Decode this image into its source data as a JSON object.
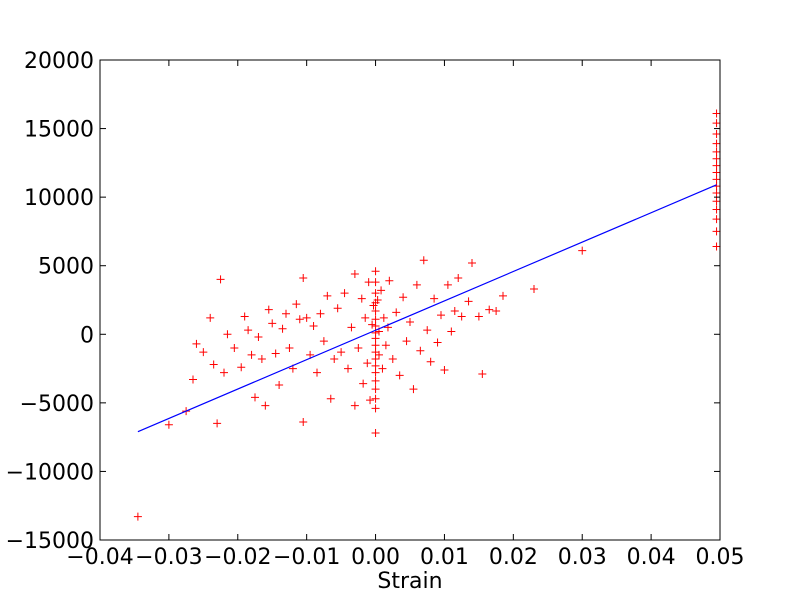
{
  "chart_data": {
    "type": "scatter",
    "xlabel": "Strain",
    "ylabel": "",
    "xlim": [
      -0.04,
      0.05
    ],
    "ylim": [
      -15000,
      20000
    ],
    "x_ticks": [
      "−0.04",
      "−0.03",
      "−0.02",
      "−0.01",
      "0.00",
      "0.01",
      "0.02",
      "0.03",
      "0.04",
      "0.05"
    ],
    "y_ticks": [
      "−15000",
      "−10000",
      "−5000",
      "0",
      "5000",
      "10000",
      "15000",
      "20000"
    ],
    "grid": false,
    "colors": {
      "points": "#ff0000",
      "fit_line": "#0000ff"
    },
    "fit_line": {
      "x": [
        -0.0345,
        0.0495
      ],
      "y": [
        -7100,
        10900
      ]
    },
    "series": [
      {
        "marker": "plus",
        "points": [
          [
            -0.0345,
            -13300
          ],
          [
            -0.03,
            -6600
          ],
          [
            -0.0275,
            -5600
          ],
          [
            -0.0265,
            -3300
          ],
          [
            -0.026,
            -700
          ],
          [
            -0.025,
            -1300
          ],
          [
            -0.024,
            1200
          ],
          [
            -0.0235,
            -2200
          ],
          [
            -0.023,
            -6500
          ],
          [
            -0.0225,
            4000
          ],
          [
            -0.022,
            -2800
          ],
          [
            -0.0215,
            0
          ],
          [
            -0.0205,
            -1000
          ],
          [
            -0.0195,
            -2400
          ],
          [
            -0.019,
            1300
          ],
          [
            -0.0185,
            300
          ],
          [
            -0.018,
            -1500
          ],
          [
            -0.0175,
            -4600
          ],
          [
            -0.017,
            -200
          ],
          [
            -0.0165,
            -1800
          ],
          [
            -0.016,
            -5200
          ],
          [
            -0.0155,
            1800
          ],
          [
            -0.015,
            800
          ],
          [
            -0.0145,
            -1400
          ],
          [
            -0.014,
            -3700
          ],
          [
            -0.0135,
            400
          ],
          [
            -0.013,
            1500
          ],
          [
            -0.0125,
            -1000
          ],
          [
            -0.012,
            -2500
          ],
          [
            -0.0115,
            2200
          ],
          [
            -0.011,
            1100
          ],
          [
            -0.0105,
            -6400
          ],
          [
            -0.0105,
            4100
          ],
          [
            -0.01,
            1200
          ],
          [
            -0.0095,
            -1500
          ],
          [
            -0.009,
            600
          ],
          [
            -0.0085,
            -2800
          ],
          [
            -0.008,
            1500
          ],
          [
            -0.0075,
            -500
          ],
          [
            -0.007,
            2800
          ],
          [
            -0.0065,
            -4700
          ],
          [
            -0.006,
            -1800
          ],
          [
            -0.0055,
            1900
          ],
          [
            -0.005,
            -1300
          ],
          [
            -0.0045,
            3000
          ],
          [
            -0.004,
            -2500
          ],
          [
            -0.0035,
            500
          ],
          [
            -0.003,
            4400
          ],
          [
            -0.003,
            -5200
          ],
          [
            -0.0025,
            -1000
          ],
          [
            -0.002,
            2600
          ],
          [
            -0.0018,
            -3600
          ],
          [
            -0.0015,
            1200
          ],
          [
            -0.0012,
            -2100
          ],
          [
            -0.001,
            3800
          ],
          [
            -0.0008,
            -4800
          ],
          [
            -0.0005,
            700
          ],
          [
            -0.0003,
            2100
          ],
          [
            0.0,
            4600
          ],
          [
            0.0,
            3800
          ],
          [
            0.0,
            3000
          ],
          [
            0.0,
            2300
          ],
          [
            0.0,
            1700
          ],
          [
            0.0,
            1100
          ],
          [
            0.0,
            600
          ],
          [
            0.0,
            100
          ],
          [
            0.0,
            -300
          ],
          [
            0.0,
            -800
          ],
          [
            0.0,
            -1300
          ],
          [
            0.0,
            -1800
          ],
          [
            0.0,
            -2300
          ],
          [
            0.0,
            -2800
          ],
          [
            0.0,
            -3400
          ],
          [
            0.0,
            -4000
          ],
          [
            0.0,
            -4700
          ],
          [
            0.0,
            -5400
          ],
          [
            0.0,
            -7200
          ],
          [
            0.0003,
            2500
          ],
          [
            0.0005,
            -1500
          ],
          [
            0.0005,
            200
          ],
          [
            0.0008,
            3200
          ],
          [
            0.001,
            -2500
          ],
          [
            0.0012,
            1200
          ],
          [
            0.0015,
            -800
          ],
          [
            0.0018,
            500
          ],
          [
            0.002,
            3900
          ],
          [
            0.0025,
            -1800
          ],
          [
            0.003,
            1600
          ],
          [
            0.0035,
            -3000
          ],
          [
            0.004,
            2700
          ],
          [
            0.0045,
            -500
          ],
          [
            0.005,
            900
          ],
          [
            0.0055,
            -4000
          ],
          [
            0.006,
            3600
          ],
          [
            0.0065,
            -1200
          ],
          [
            0.007,
            5400
          ],
          [
            0.0075,
            300
          ],
          [
            0.008,
            -2000
          ],
          [
            0.0085,
            2600
          ],
          [
            0.009,
            -600
          ],
          [
            0.0095,
            1400
          ],
          [
            0.01,
            -2600
          ],
          [
            0.0105,
            3600
          ],
          [
            0.011,
            200
          ],
          [
            0.0115,
            1700
          ],
          [
            0.012,
            4100
          ],
          [
            0.0125,
            1300
          ],
          [
            0.0135,
            2400
          ],
          [
            0.014,
            5200
          ],
          [
            0.015,
            1300
          ],
          [
            0.0155,
            -2900
          ],
          [
            0.0165,
            1800
          ],
          [
            0.0175,
            1700
          ],
          [
            0.0185,
            2800
          ],
          [
            0.023,
            3300
          ],
          [
            0.03,
            6100
          ],
          [
            0.0495,
            6400
          ],
          [
            0.0495,
            7500
          ],
          [
            0.0495,
            8400
          ],
          [
            0.0495,
            9100
          ],
          [
            0.0495,
            9700
          ],
          [
            0.0495,
            10300
          ],
          [
            0.0495,
            10800
          ],
          [
            0.0495,
            11300
          ],
          [
            0.0495,
            11800
          ],
          [
            0.0495,
            12300
          ],
          [
            0.0495,
            12800
          ],
          [
            0.0495,
            13300
          ],
          [
            0.0495,
            13900
          ],
          [
            0.0495,
            14600
          ],
          [
            0.0495,
            15400
          ],
          [
            0.0495,
            16100
          ]
        ]
      }
    ]
  }
}
